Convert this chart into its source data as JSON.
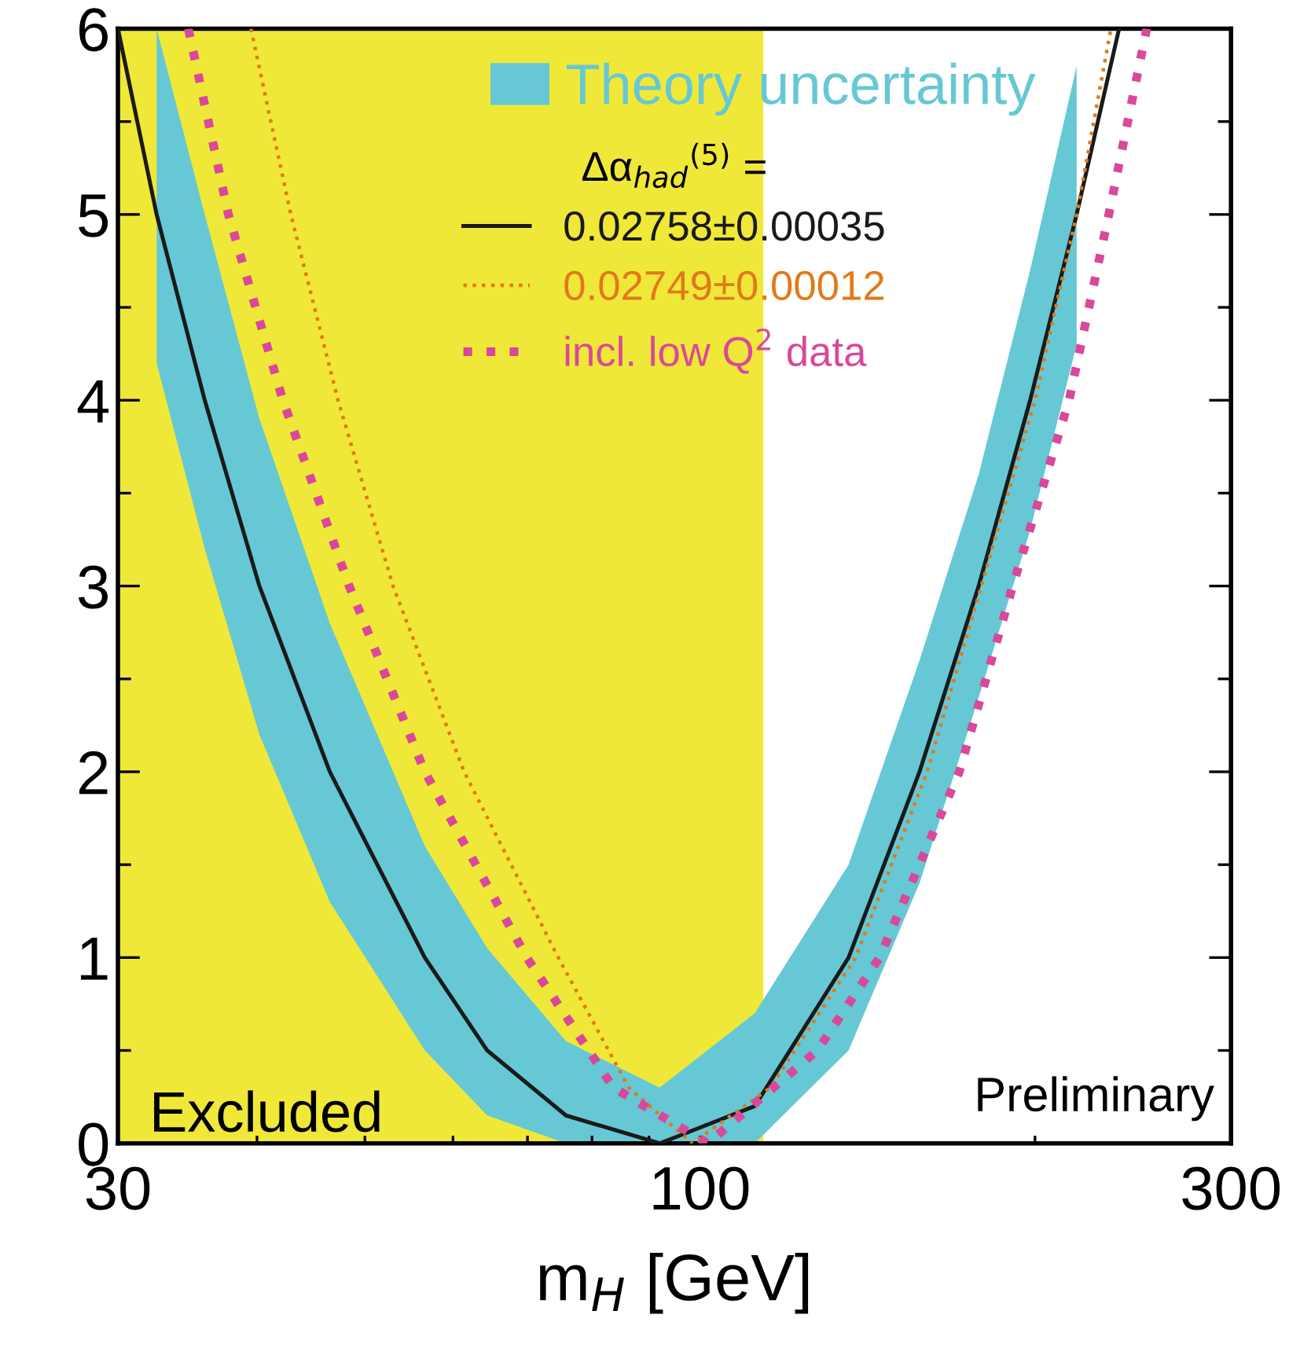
{
  "chart_data": {
    "type": "line",
    "xlabel": "m$_{H}$ [GeV]",
    "legend_title": "Δα$_{had}$$^{(5)}$ =",
    "legend": "top",
    "log": "x",
    "grid": false,
    "marker": "none",
    "xlim": [
      30,
      300
    ],
    "xticks": [
      30,
      {
        "value": 40,
        "label": null
      },
      {
        "value": 50,
        "label": null
      },
      {
        "value": 60,
        "label": null
      },
      {
        "value": 70,
        "label": null
      },
      {
        "value": 80,
        "label": null
      },
      {
        "value": 90,
        "label": null
      },
      100,
      {
        "value": 200,
        "label": null
      },
      300
    ],
    "ylim": [
      0,
      6
    ],
    "yticks": [
      0,
      {
        "value": 0.5,
        "label": null
      },
      1,
      {
        "value": 1.5,
        "label": null
      },
      2,
      {
        "value": 2.5,
        "label": null
      },
      3,
      {
        "value": 3.5,
        "label": null
      },
      4,
      {
        "value": 4.5,
        "label": null
      },
      5,
      {
        "value": 5.5,
        "label": null
      },
      6
    ],
    "bands": [
      {
        "axis": "x",
        "from": 30,
        "to": 114,
        "label": "Excluded",
        "color": "#f0e838"
      }
    ],
    "annotations": [
      "Theory uncertainty",
      "Preliminary"
    ],
    "series": [
      {
        "name": "0.02758±0.00035",
        "color": "#1a1a1a",
        "line_style": "solid",
        "x": [
          30,
          32.5,
          35.9,
          40.2,
          46.5,
          56.6,
          64.4,
          75.8,
          92,
          112,
          136,
          157.5,
          178,
          198,
          218,
          238
        ],
        "values": [
          6,
          5,
          4,
          3,
          2,
          1,
          0.5,
          0.15,
          0,
          0.2,
          1,
          2,
          3,
          4,
          5,
          6
        ],
        "upper": [
          null,
          6.0,
          5.0,
          3.9,
          2.8,
          1.6,
          1.05,
          0.55,
          0.3,
          0.7,
          1.5,
          2.6,
          3.6,
          4.7,
          5.8,
          null
        ],
        "lower": [
          null,
          4.2,
          3.2,
          2.2,
          1.3,
          0.5,
          0.15,
          0,
          0,
          0,
          0.5,
          1.4,
          2.4,
          3.3,
          4.3,
          null
        ]
      },
      {
        "name": "0.02749±0.00012",
        "color": "#e07a1a",
        "line_style": "dotted",
        "x": [
          39.5,
          42.9,
          47.3,
          53,
          61.4,
          74.6,
          86.3,
          98.4,
          115.7,
          138,
          160,
          179,
          200,
          218,
          234
        ],
        "values": [
          6,
          5,
          4,
          3,
          2,
          1,
          0.3,
          0,
          0.3,
          1,
          2,
          3,
          4,
          5,
          6
        ]
      },
      {
        "name": "incl. low Q$^{2}$ data",
        "color": "#d9489a",
        "line_style": "dotted",
        "x": [
          34.7,
          37.7,
          42.2,
          48.4,
          56.6,
          69.9,
          83.6,
          101.6,
          127.5,
          145,
          171,
          191,
          214.6,
          233,
          252
        ],
        "values": [
          6,
          5,
          4,
          3,
          2,
          1,
          0.3,
          0,
          0.5,
          1,
          2,
          3,
          4,
          5,
          6
        ]
      }
    ]
  }
}
